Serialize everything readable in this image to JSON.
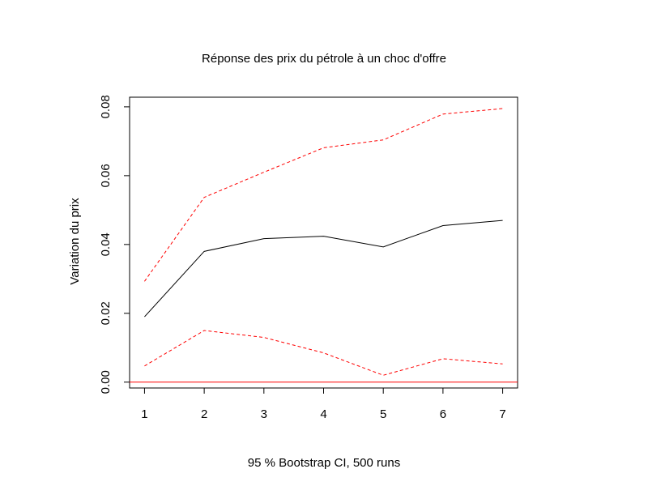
{
  "chart_data": {
    "type": "line",
    "title": "Réponse des prix du pétrole à un choc d'offre",
    "xlabel": "95 % Bootstrap CI,  500 runs",
    "ylabel": "Variation du prix",
    "x": [
      1,
      2,
      3,
      4,
      5,
      6,
      7
    ],
    "xticks": [
      "1",
      "2",
      "3",
      "4",
      "5",
      "6",
      "7"
    ],
    "yticks": [
      "0.00",
      "0.02",
      "0.04",
      "0.06",
      "0.08"
    ],
    "ytick_values": [
      0.0,
      0.02,
      0.04,
      0.06,
      0.08
    ],
    "xlim": [
      0.75,
      7.25
    ],
    "ylim": [
      -0.0017,
      0.0828
    ],
    "series": [
      {
        "values": [
          0.019,
          0.038,
          0.0417,
          0.0424,
          0.0393,
          0.0455,
          0.047
        ],
        "color": "#000000",
        "style": "solid"
      },
      {
        "values": [
          0.0293,
          0.0537,
          0.061,
          0.0681,
          0.0704,
          0.0779,
          0.0795
        ],
        "color": "#ff0000",
        "style": "dashed"
      },
      {
        "values": [
          0.0047,
          0.015,
          0.013,
          0.0085,
          0.002,
          0.0068,
          0.0053
        ],
        "color": "#ff0000",
        "style": "dashed"
      }
    ],
    "reference_line": {
      "y": 0,
      "color": "#ff0000"
    },
    "grid": false,
    "legend": "none"
  }
}
